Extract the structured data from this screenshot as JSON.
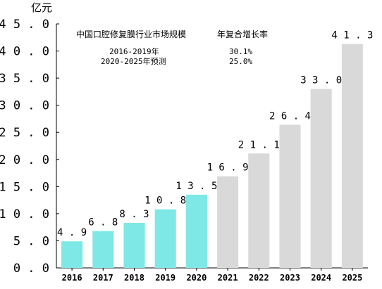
{
  "chart_data": {
    "type": "bar",
    "title": "中国口腔修复膜行业市场规模",
    "ylabel": "亿元",
    "categories": [
      "2016",
      "2017",
      "2018",
      "2019",
      "2020",
      "2021",
      "2022",
      "2023",
      "2024",
      "2025"
    ],
    "values": [
      4.9,
      6.8,
      8.3,
      10.8,
      13.5,
      16.9,
      21.1,
      26.4,
      33.0,
      41.3
    ],
    "value_labels": [
      "4.9",
      "6.8",
      "8.3",
      "10.8",
      "13.5",
      "16.9",
      "21.1",
      "26.4",
      "33.0",
      "41.3"
    ],
    "ylim": [
      0,
      45
    ],
    "yticks": [
      "0.0",
      "5.0",
      "10.0",
      "15.0",
      "20.0",
      "25.0",
      "30.0",
      "35.0",
      "40.0",
      "45.0"
    ],
    "grid": false,
    "colors": {
      "actual": "#7ee8e6",
      "forecast": "#d9d9d9",
      "axis": "#000000"
    },
    "actual_count": 5,
    "cagr_header": "年复合增长率",
    "cagr_rows": [
      {
        "period": "2016-2019年",
        "rate": "30.1%"
      },
      {
        "period": "2020-2025年预测",
        "rate": "25.0%"
      }
    ]
  }
}
